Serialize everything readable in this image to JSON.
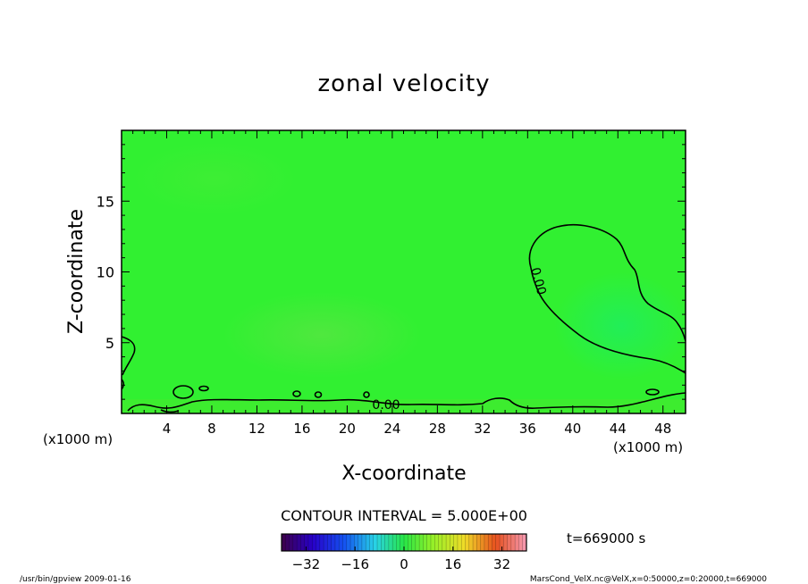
{
  "chart_data": {
    "type": "heatmap",
    "title": "zonal velocity",
    "xlabel": "X-coordinate",
    "ylabel": "Z-coordinate",
    "x_unit": "(x1000 m)",
    "y_unit": "(x1000 m)",
    "xlim": [
      0,
      50
    ],
    "ylim": [
      0,
      20
    ],
    "x_ticks": [
      4,
      8,
      12,
      16,
      20,
      24,
      28,
      32,
      36,
      40,
      44,
      48
    ],
    "y_ticks": [
      5,
      10,
      15
    ],
    "contour_label": "0.00",
    "contour_interval": "CONTOUR INTERVAL = 5.000E+00",
    "time_label": "t=669000 s",
    "colorbar": {
      "vmin": -40,
      "vmax": 40,
      "ticks": [
        -32,
        -16,
        0,
        16,
        32
      ],
      "colormap": "rainbow"
    },
    "field_color": "#31f031",
    "contour_color": "#000000",
    "footer_left": "/usr/bin/gpview   2009-01-16",
    "footer_right": "MarsCond_VelX.nc@VelX,x=0:50000,z=0:20000,t=669000"
  }
}
